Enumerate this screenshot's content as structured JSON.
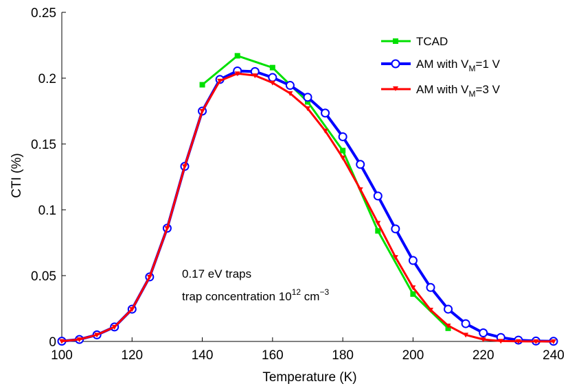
{
  "chart_data": {
    "type": "line",
    "title": "",
    "xlabel": "Temperature (K)",
    "ylabel": "CTI (%)",
    "xlim": [
      100,
      240
    ],
    "ylim": [
      0,
      0.25
    ],
    "xticks": [
      100,
      120,
      140,
      160,
      180,
      200,
      220,
      240
    ],
    "yticks": [
      0,
      0.05,
      0.1,
      0.15,
      0.2,
      0.25
    ],
    "xtick_labels": [
      "100",
      "120",
      "140",
      "160",
      "180",
      "200",
      "220",
      "240"
    ],
    "ytick_labels": [
      "0",
      "0.05",
      "0.1",
      "0.15",
      "0.2",
      "0.25"
    ],
    "grid": false,
    "legend_position": "top-right",
    "legend": [
      {
        "base": "TCAD",
        "sub": "",
        "tail": ""
      },
      {
        "base": "AM with V",
        "sub": "M",
        "tail": "=1 V"
      },
      {
        "base": "AM with V",
        "sub": "M",
        "tail": "=3 V"
      }
    ],
    "annotations": {
      "line1": "0.17 eV traps",
      "line2_prefix": "trap concentration 10",
      "line2_exp1": "12",
      "line2_mid": " cm",
      "line2_exp2": "−3"
    },
    "series": [
      {
        "name": "TCAD",
        "color": "#00e000",
        "marker": "square",
        "x": [
          140,
          150,
          160,
          170,
          180,
          190,
          200,
          210
        ],
        "y": [
          0.195,
          0.217,
          0.208,
          0.182,
          0.145,
          0.084,
          0.036,
          0.01
        ]
      },
      {
        "name": "AM with VM=1 V",
        "color": "#0000ff",
        "marker": "circle",
        "x": [
          100,
          105,
          110,
          115,
          120,
          125,
          130,
          135,
          140,
          145,
          150,
          155,
          160,
          165,
          170,
          175,
          180,
          185,
          190,
          195,
          200,
          205,
          210,
          215,
          220,
          225,
          230,
          235,
          240
        ],
        "y": [
          0.0002,
          0.0015,
          0.005,
          0.011,
          0.0245,
          0.049,
          0.086,
          0.133,
          0.175,
          0.199,
          0.2055,
          0.205,
          0.2005,
          0.1945,
          0.1855,
          0.1735,
          0.1555,
          0.1345,
          0.1105,
          0.0855,
          0.0615,
          0.041,
          0.0245,
          0.0135,
          0.0065,
          0.003,
          0.001,
          0.0003,
          0.0001
        ]
      },
      {
        "name": "AM with VM=3 V",
        "color": "#ff0000",
        "marker": "triangle-down",
        "x": [
          100,
          105,
          110,
          115,
          120,
          125,
          130,
          135,
          140,
          145,
          150,
          155,
          160,
          165,
          170,
          175,
          180,
          185,
          190,
          195,
          200,
          205,
          210,
          215,
          220,
          225,
          230,
          235,
          240
        ],
        "y": [
          0.0002,
          0.0015,
          0.005,
          0.011,
          0.0245,
          0.049,
          0.086,
          0.133,
          0.175,
          0.198,
          0.2035,
          0.202,
          0.1965,
          0.1885,
          0.177,
          0.16,
          0.1395,
          0.1155,
          0.09,
          0.064,
          0.041,
          0.024,
          0.012,
          0.005,
          0.0015,
          0.0003,
          0.0001,
          0.0,
          0.0
        ]
      }
    ]
  }
}
